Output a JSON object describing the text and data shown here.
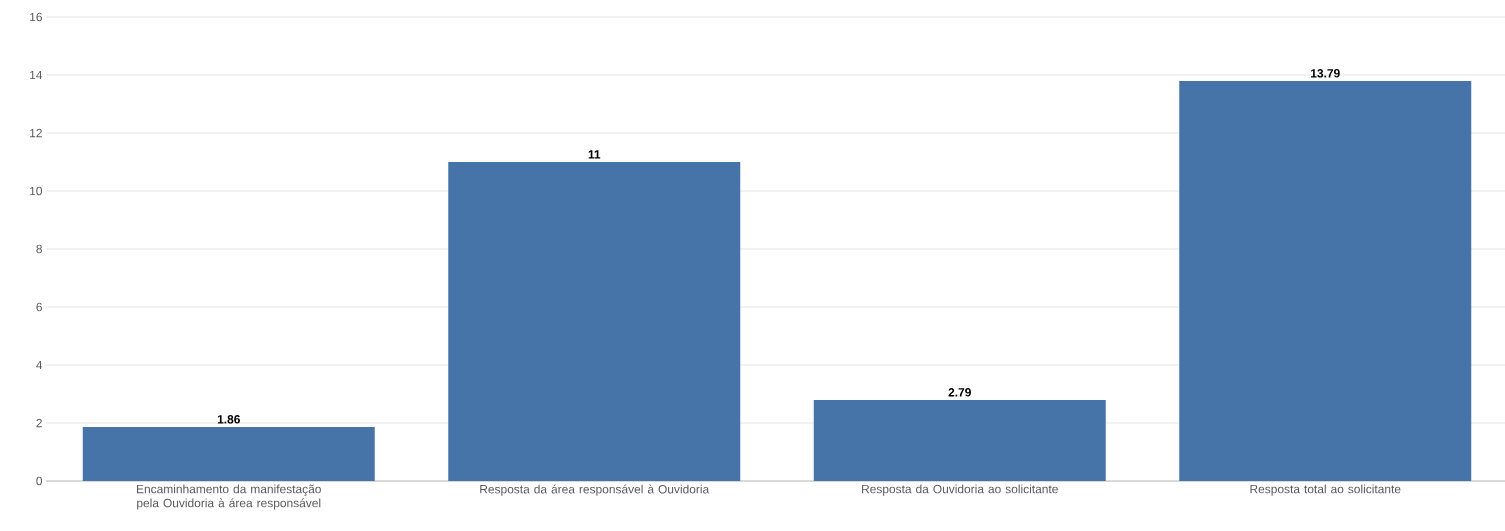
{
  "chart_data": {
    "type": "bar",
    "categories": [
      "Encaminhamento da manifestação pela Ouvidoria à área responsável",
      "Resposta da área responsável à Ouvidoria",
      "Resposta da Ouvidoria ao solicitante",
      "Resposta total ao solicitante"
    ],
    "values": [
      1.86,
      11,
      2.79,
      13.79
    ],
    "color": "#4674a8",
    "ylim": [
      0,
      16
    ],
    "yticks": [
      0,
      2,
      4,
      6,
      8,
      10,
      12,
      14,
      16
    ],
    "grid": "y",
    "data_labels": true
  }
}
